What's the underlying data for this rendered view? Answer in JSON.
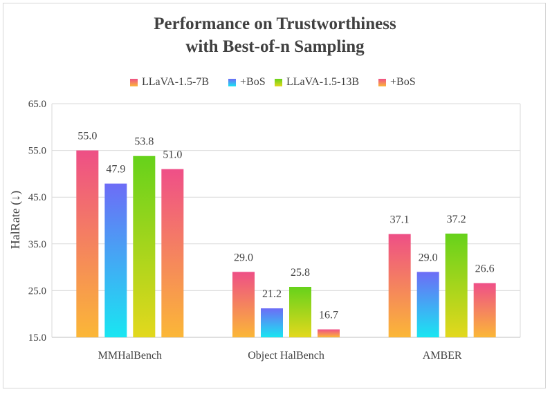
{
  "chart_data": {
    "type": "bar",
    "title_lines": [
      "Performance on Trustworthiness",
      "with Best-of-n Sampling"
    ],
    "xlabel": "",
    "ylabel": "HalRate (↓)",
    "ylim": [
      15.0,
      65.0
    ],
    "yticks": [
      "15.0",
      "25.0",
      "35.0",
      "45.0",
      "55.0",
      "65.0"
    ],
    "grid": true,
    "legend_position": "top-center",
    "categories": [
      "MMHalBench",
      "Object HalBench",
      "AMBER"
    ],
    "series": [
      {
        "name": "LLaVA-1.5-7B",
        "values": [
          55.0,
          29.0,
          37.1
        ],
        "labels": [
          "55.0",
          "29.0",
          "37.1"
        ],
        "gradient": [
          "#ee4f86",
          "#fbb737"
        ]
      },
      {
        "name": "+BoS",
        "values": [
          47.9,
          21.2,
          29.0
        ],
        "labels": [
          "47.9",
          "21.2",
          "29.0"
        ],
        "gradient": [
          "#6d6cf6",
          "#19e6f2"
        ]
      },
      {
        "name": "LLaVA-1.5-13B",
        "values": [
          53.8,
          25.8,
          37.2
        ],
        "labels": [
          "53.8",
          "25.8",
          "37.2"
        ],
        "gradient": [
          "#66d21b",
          "#e3d81d"
        ]
      },
      {
        "name": "+BoS",
        "values": [
          51.0,
          16.7,
          26.6
        ],
        "labels": [
          "51.0",
          "16.7",
          "26.6"
        ],
        "gradient": [
          "#ef4f88",
          "#fbb737"
        ]
      }
    ]
  }
}
